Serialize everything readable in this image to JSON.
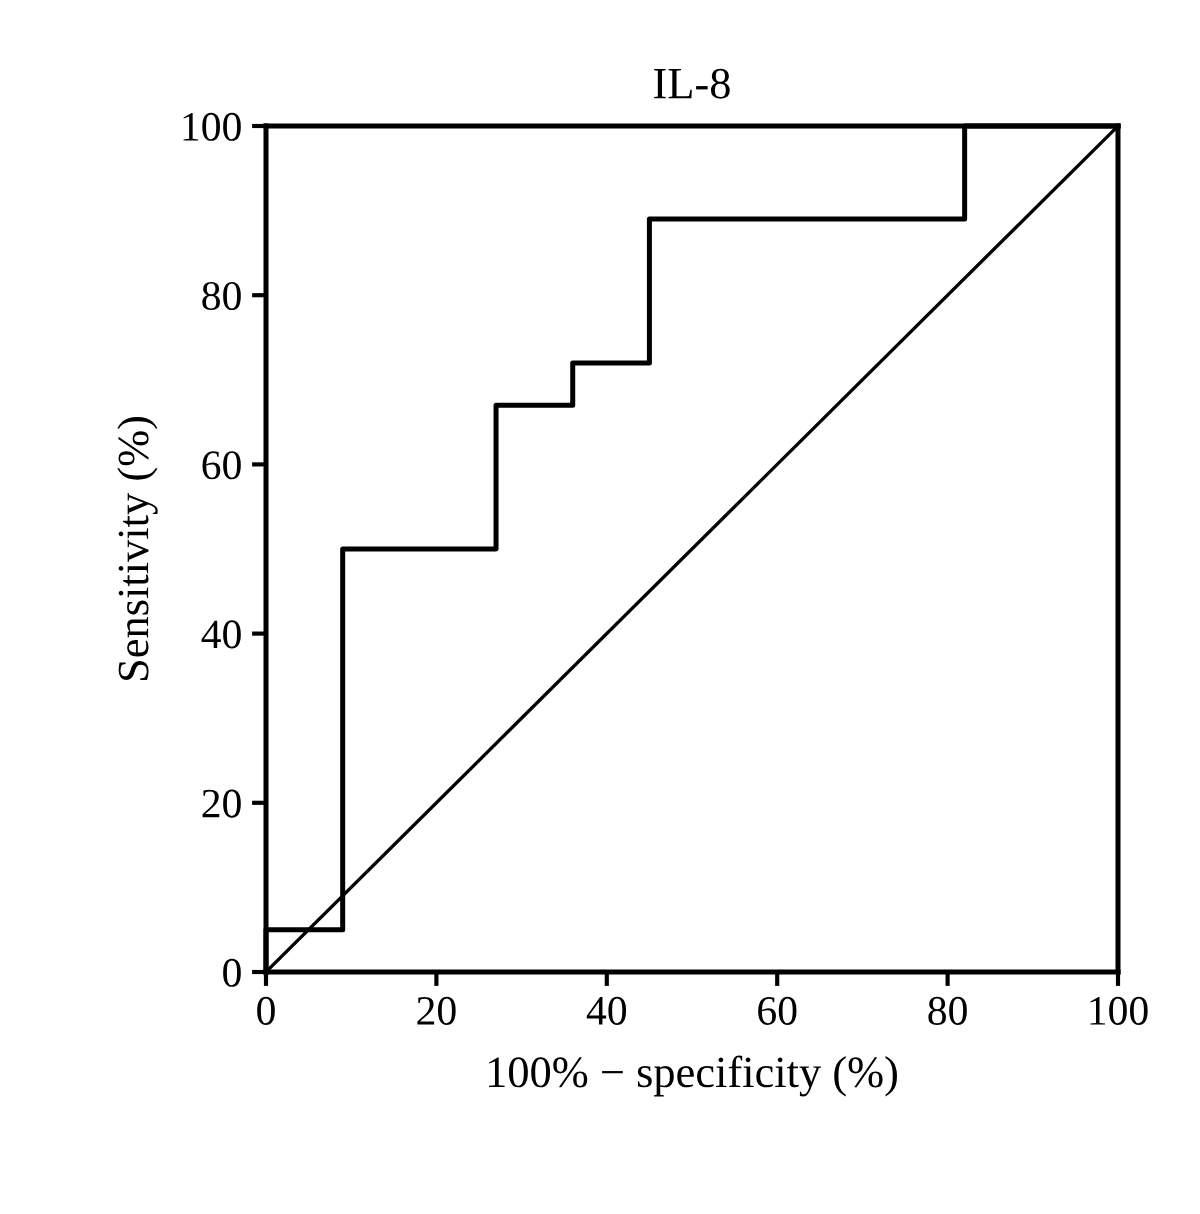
{
  "chart_data": {
    "type": "step",
    "title": "IL-8",
    "xlabel": "100% − specificity (%)",
    "ylabel": "Sensitivity (%)",
    "series": [
      {
        "color": "#000000",
        "x": [
          0,
          0,
          9,
          27,
          36,
          45,
          82,
          100
        ],
        "values": [
          0,
          5,
          50,
          67,
          72,
          89,
          100,
          100
        ]
      },
      {
        "type": "line",
        "color": "#000000",
        "x": [
          0,
          100
        ],
        "values": [
          0,
          100
        ]
      }
    ],
    "xlim": [
      0,
      100
    ],
    "ylim": [
      0,
      100
    ],
    "xticks": [
      0,
      20,
      40,
      60,
      80,
      100
    ],
    "yticks": [
      0,
      20,
      40,
      60,
      80,
      100
    ],
    "grid": false,
    "marker": "none",
    "line_style": "solid"
  }
}
